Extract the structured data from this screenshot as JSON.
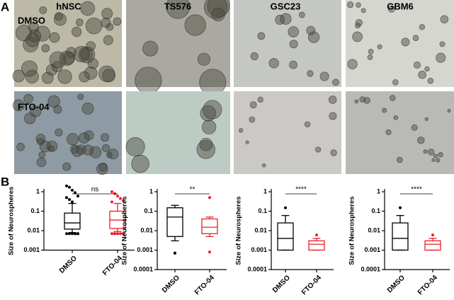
{
  "panel_a": {
    "label": "A",
    "columns": [
      "hNSC",
      "TS576",
      "GSC23",
      "GBM6"
    ],
    "rows": [
      "DMSO",
      "FTO-04"
    ]
  },
  "panel_b": {
    "label": "B"
  },
  "chart_data": [
    {
      "type": "box",
      "y_label": "Size of Neurospheres",
      "categories": [
        "DMSO",
        "FTO-04"
      ],
      "log": true,
      "ylim": [
        0.001,
        1
      ],
      "yticks": [
        0.001,
        0.01,
        0.1,
        1
      ],
      "significance": "ns",
      "boxes": [
        {
          "color": "#000000",
          "whisker_low": 0.008,
          "q1": 0.012,
          "median": 0.025,
          "q3": 0.08,
          "whisker_high": 0.25,
          "outliers": [
            2,
            1.7,
            1.2,
            0.9,
            0.6,
            0.5,
            0.4,
            0.3,
            0.007,
            0.007,
            0.007,
            0.007,
            0.007,
            0.007,
            0.007
          ]
        },
        {
          "color": "#e8202a",
          "whisker_low": 0.009,
          "q1": 0.013,
          "median": 0.035,
          "q3": 0.1,
          "whisker_high": 0.25,
          "outliers": [
            1,
            0.8,
            0.6,
            0.45,
            0.35,
            0.3,
            0.007,
            0.007,
            0.007,
            0.007,
            0.007,
            0.007
          ]
        }
      ]
    },
    {
      "type": "box",
      "y_label": "Size of Neurospheres",
      "categories": [
        "DMSO",
        "FTO-04"
      ],
      "log": true,
      "ylim": [
        0.0001,
        1
      ],
      "yticks": [
        0.0001,
        0.001,
        0.01,
        0.1,
        1
      ],
      "significance": "**",
      "boxes": [
        {
          "color": "#000000",
          "whisker_low": 0.003,
          "q1": 0.005,
          "median": 0.05,
          "q3": 0.15,
          "whisker_high": 0.2,
          "outliers": [
            0.0007,
            0.0007
          ]
        },
        {
          "color": "#e8202a",
          "whisker_low": 0.005,
          "q1": 0.007,
          "median": 0.015,
          "q3": 0.04,
          "whisker_high": 0.05,
          "outliers": [
            0.5,
            0.0008
          ]
        }
      ]
    },
    {
      "type": "box",
      "y_label": "Size of Neurospheres",
      "categories": [
        "DMSO",
        "FTO-04"
      ],
      "log": true,
      "ylim": [
        0.0001,
        1
      ],
      "yticks": [
        0.0001,
        0.001,
        0.01,
        0.1,
        1
      ],
      "significance": "****",
      "boxes": [
        {
          "color": "#000000",
          "whisker_low": 0.001,
          "q1": 0.001,
          "median": 0.004,
          "q3": 0.025,
          "whisker_high": 0.06,
          "outliers": [
            0.15
          ]
        },
        {
          "color": "#e8202a",
          "whisker_low": 0.001,
          "q1": 0.001,
          "median": 0.002,
          "q3": 0.003,
          "whisker_high": 0.004,
          "outliers": [
            0.006
          ]
        }
      ]
    },
    {
      "type": "box",
      "y_label": "Size of Neurospheres",
      "categories": [
        "DMSO",
        "FTO-04"
      ],
      "log": true,
      "ylim": [
        0.0001,
        1
      ],
      "yticks": [
        0.0001,
        0.001,
        0.01,
        0.1,
        1
      ],
      "significance": "****",
      "boxes": [
        {
          "color": "#000000",
          "whisker_low": 0.001,
          "q1": 0.001,
          "median": 0.004,
          "q3": 0.025,
          "whisker_high": 0.06,
          "outliers": [
            0.15
          ]
        },
        {
          "color": "#e8202a",
          "whisker_low": 0.001,
          "q1": 0.001,
          "median": 0.002,
          "q3": 0.003,
          "whisker_high": 0.004,
          "outliers": [
            0.006
          ]
        }
      ]
    }
  ]
}
